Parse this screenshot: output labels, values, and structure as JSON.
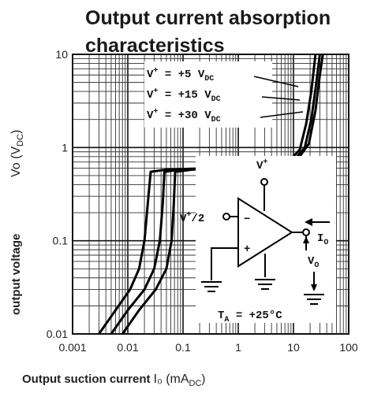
{
  "chart_data": {
    "type": "line",
    "title_line1": "Output current absorption",
    "title_line2": "characteristics",
    "xlabel_prefix": "Output suction current ",
    "xlabel_unit": "I₀ (mA",
    "xlabel_unit_sub": "DC",
    "xlabel_unit_end": ")",
    "ylabel_text": "output voltage",
    "ylabel_unit": "Vo (V",
    "ylabel_unit_sub": "DC",
    "ylabel_unit_end": ")",
    "x_scale": "log",
    "y_scale": "log",
    "xlim": [
      0.001,
      100
    ],
    "ylim": [
      0.01,
      10
    ],
    "x_ticks": [
      "0.001",
      "0.01",
      "0.1",
      "1",
      "10",
      "100"
    ],
    "y_ticks": [
      "10",
      "1",
      "0.1",
      "0.01"
    ],
    "grid": true,
    "series": [
      {
        "name": "V+ = +5 VDC",
        "label_v": "V",
        "label_rest": "  =  +5 V",
        "label_sub": "DC",
        "points": [
          [
            0.003,
            0.01
          ],
          [
            0.006,
            0.018
          ],
          [
            0.011,
            0.03
          ],
          [
            0.016,
            0.05
          ],
          [
            0.02,
            0.1
          ],
          [
            0.023,
            0.25
          ],
          [
            0.026,
            0.55
          ],
          [
            0.05,
            0.58
          ],
          [
            0.3,
            0.6
          ],
          [
            3,
            0.63
          ],
          [
            8,
            0.7
          ],
          [
            13,
            0.95
          ],
          [
            17,
            1.8
          ],
          [
            21,
            4
          ],
          [
            25,
            10
          ]
        ]
      },
      {
        "name": "V+ = +15 VDC",
        "label_v": "V",
        "label_rest": "  =  +15 V",
        "label_sub": "DC",
        "points": [
          [
            0.005,
            0.01
          ],
          [
            0.01,
            0.018
          ],
          [
            0.02,
            0.03
          ],
          [
            0.03,
            0.05
          ],
          [
            0.038,
            0.1
          ],
          [
            0.043,
            0.25
          ],
          [
            0.046,
            0.55
          ],
          [
            0.09,
            0.58
          ],
          [
            0.5,
            0.6
          ],
          [
            4,
            0.63
          ],
          [
            10,
            0.72
          ],
          [
            16,
            1.0
          ],
          [
            21,
            2
          ],
          [
            26,
            5
          ],
          [
            30,
            10
          ]
        ]
      },
      {
        "name": "V+ = +30 VDC",
        "label_v": "V",
        "label_rest": "  =  +30 V",
        "label_sub": "DC",
        "points": [
          [
            0.008,
            0.01
          ],
          [
            0.016,
            0.018
          ],
          [
            0.032,
            0.03
          ],
          [
            0.05,
            0.05
          ],
          [
            0.062,
            0.1
          ],
          [
            0.068,
            0.25
          ],
          [
            0.072,
            0.55
          ],
          [
            0.15,
            0.58
          ],
          [
            0.8,
            0.6
          ],
          [
            5,
            0.64
          ],
          [
            12,
            0.75
          ],
          [
            19,
            1.1
          ],
          [
            25,
            2.5
          ],
          [
            30,
            6
          ],
          [
            34,
            10
          ]
        ]
      }
    ],
    "circuit": {
      "vplus": "V",
      "vhalf": "V",
      "vhalf_tail": "/2",
      "minus": "−",
      "plus": "+",
      "io": "I",
      "io_sub": "O",
      "vo": "V",
      "vo_sub": "O",
      "ta_text": "T",
      "ta_sub": "A",
      "ta_rest": " = +25°C"
    }
  }
}
